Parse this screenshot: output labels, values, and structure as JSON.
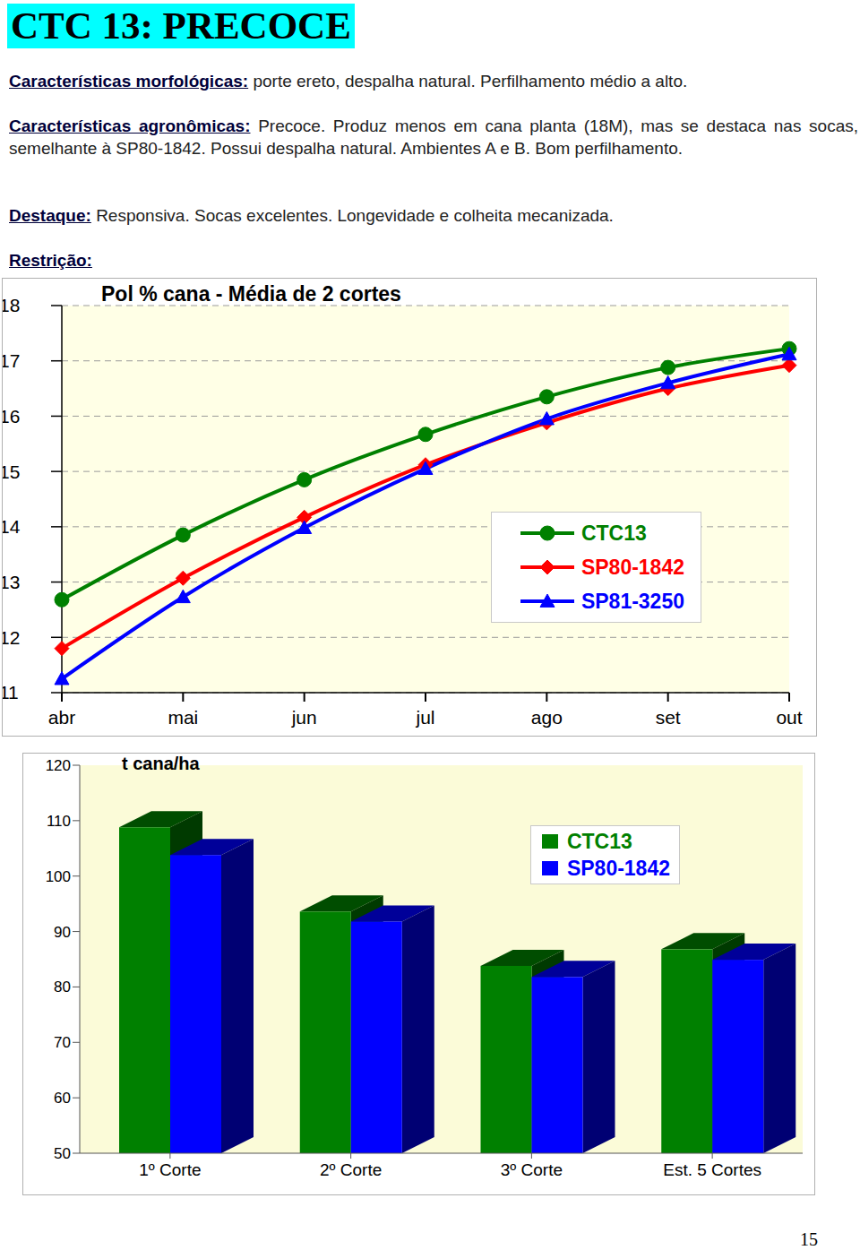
{
  "document": {
    "title": "CTC 13: PRECOCE",
    "sections": [
      {
        "label": "Características morfológicas:",
        "text": "porte ereto, despalha natural. Perfilhamento médio a alto."
      },
      {
        "label": "Características agronômicas:",
        "text": "Precoce. Produz menos em cana planta (18M), mas se destaca nas socas, semelhante à SP80-1842. Possui despalha natural. Ambientes A e B. Bom perfilhamento."
      },
      {
        "label": "Destaque:",
        "text": "Responsiva. Socas excelentes. Longevidade e colheita mecanizada."
      },
      {
        "label": "Restrição:"
      }
    ],
    "page_number": "15"
  },
  "chart_data": [
    {
      "type": "line",
      "title": "Pol % cana - Média de 2 cortes",
      "categories": [
        "abr",
        "mai",
        "jun",
        "jul",
        "ago",
        "set",
        "out"
      ],
      "series": [
        {
          "name": "CTC13",
          "color": "#008000",
          "marker": "circle",
          "values": [
            12.68,
            13.85,
            14.85,
            15.67,
            16.35,
            16.88,
            17.22
          ]
        },
        {
          "name": "SP80-1842",
          "color": "#ff0000",
          "marker": "diamond",
          "values": [
            11.8,
            13.07,
            14.17,
            15.12,
            15.88,
            16.5,
            16.92
          ]
        },
        {
          "name": "SP81-3250",
          "color": "#0000ff",
          "marker": "triangle",
          "values": [
            11.25,
            12.73,
            13.98,
            15.05,
            15.95,
            16.6,
            17.12
          ]
        }
      ],
      "ylim": [
        11,
        18
      ],
      "yticks": [
        11,
        12,
        13,
        14,
        15,
        16,
        17,
        18
      ],
      "grid": true,
      "legend": "lower right"
    },
    {
      "type": "bar",
      "title": "t cana/ha",
      "categories": [
        "1º Corte",
        "2º Corte",
        "3º Corte",
        "Est. 5 Cortes"
      ],
      "series": [
        {
          "name": "CTC13",
          "color": "#008000",
          "values": [
            108.8,
            93.6,
            83.8,
            86.8
          ]
        },
        {
          "name": "SP80-1842",
          "color": "#0000ff",
          "values": [
            103.8,
            91.8,
            81.8,
            84.9
          ]
        }
      ],
      "ylim": [
        50,
        120
      ],
      "yticks": [
        50,
        60,
        70,
        80,
        90,
        100,
        110,
        120
      ],
      "grid": false,
      "legend": "upper right"
    }
  ]
}
